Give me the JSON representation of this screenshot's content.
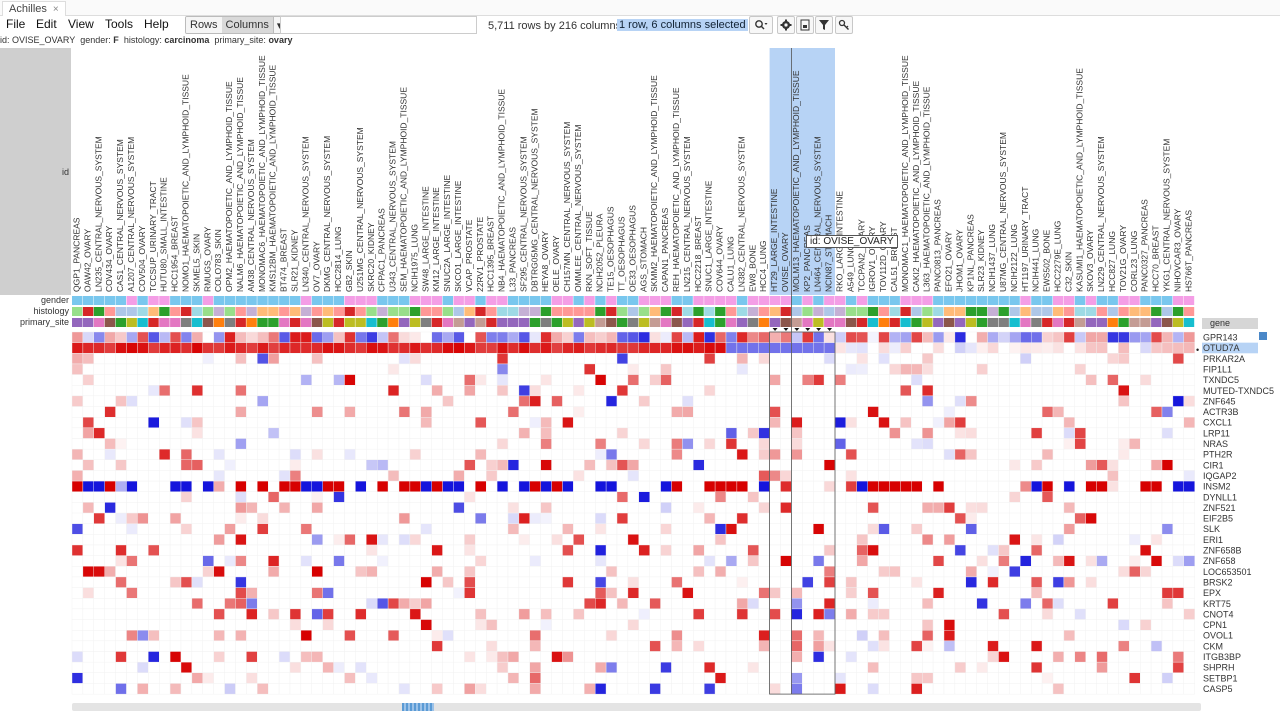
{
  "app": {
    "tab_title": "Achilles",
    "close_glyph": "×"
  },
  "menu": [
    "File",
    "Edit",
    "View",
    "Tools",
    "Help"
  ],
  "toggle": {
    "rows": "Rows",
    "columns": "Columns",
    "active": "columns",
    "caret": "▾"
  },
  "search": {
    "value": "",
    "placeholder": ""
  },
  "status": {
    "row_count": "5,711 rows by 216 columns",
    "selection": "1 row, 6 columns selected"
  },
  "toolbar_icons": [
    "zoom-icon",
    "gear-icon",
    "save-icon",
    "filter-icon",
    "key-icon"
  ],
  "info": {
    "id_label": "id:",
    "id_value": "OVISE_OVARY",
    "gender_label": "gender:",
    "gender_value": "F",
    "histology_label": "histology:",
    "histology_value": "carcinoma",
    "site_label": "primary_site:",
    "site_value": "ovary"
  },
  "row_annotations": {
    "id_label": "id",
    "gender": "gender",
    "histology": "histology",
    "primary_site": "primary_site"
  },
  "gene_header": "gene",
  "tooltip": {
    "label": "id:",
    "value": "OVISE_OVARY"
  },
  "columns": [
    "QGP1_PANCREAS",
    "OAW42_OVARY",
    "LN235_CENTRAL_NERVOUS_SYSTEM",
    "COV434_OVARY",
    "CAS1_CENTRAL_NERVOUS_SYSTEM",
    "A1207_CENTRAL_NERVOUS_SYSTEM",
    "COV504_OVARY",
    "TCCSUP_URINARY_TRACT",
    "HUTU80_SMALL_INTESTINE",
    "HCC1954_BREAST",
    "NOMO1_HAEMATOPOIETIC_AND_LYMPHOID_TISSUE",
    "SKMEL5_SKIN",
    "RMUGS_OVARY",
    "COLO783_SKIN",
    "OPM2_HAEMATOPOIETIC_AND_LYMPHOID_TISSUE",
    "NALM6_HAEMATOPOIETIC_AND_LYMPHOID_TISSUE",
    "AM38_CENTRAL_NERVOUS_SYSTEM",
    "MONOMAC6_HAEMATOPOIETIC_AND_LYMPHOID_TISSUE",
    "KMS12BM_HAEMATOPOIETIC_AND_LYMPHOID_TISSUE",
    "BT474_BREAST",
    "SLR21_KIDNEY",
    "LN340_CENTRAL_NERVOUS_SYSTEM",
    "OV7_OVARY",
    "DKMG_CENTRAL_NERVOUS_SYSTEM",
    "HCC2814_LUNG",
    "GB2_SKIN",
    "U251MG_CENTRAL_NERVOUS_SYSTEM",
    "SKRC20_KIDNEY",
    "CFPAC1_PANCREAS",
    "U343_CENTRAL_NERVOUS_SYSTEM",
    "SEM_HAEMATOPOIETIC_AND_LYMPHOID_TISSUE",
    "NCIH1975_LUNG",
    "SW48_LARGE_INTESTINE",
    "KM12_LARGE_INTESTINE",
    "SNUC2A_LARGE_INTESTINE",
    "SKCO1_LARGE_INTESTINE",
    "VCAP_PROSTATE",
    "22RV1_PROSTATE",
    "HCC1395_BREAST",
    "NB4_HAEMATOPOIETIC_AND_LYMPHOID_TISSUE",
    "L33_PANCREAS",
    "SF295_CENTRAL_NERVOUS_SYSTEM",
    "DBTRG05MG_CENTRAL_NERVOUS_SYSTEM",
    "HEYA8_OVARY",
    "OELE_OVARY",
    "CH157MN_CENTRAL_NERVOUS_SYSTEM",
    "OMMLEE_CENTRAL_NERVOUS_SYSTEM",
    "RKN_SOFT_TISSUE",
    "NCIH2052_PLEURA",
    "TE15_OESOPHAGUS",
    "TT_OESOPHAGUS",
    "OE33_OESOPHAGUS",
    "AGS_STOMACH",
    "SKMM2_HAEMATOPOIETIC_AND_LYMPHOID_TISSUE",
    "CAPAN1_PANCREAS",
    "REH_HAEMATOPOIETIC_AND_LYMPHOID_TISSUE",
    "LN215_CENTRAL_NERVOUS_SYSTEM",
    "HCC2218_BREAST",
    "SNUC1_LARGE_INTESTINE",
    "COV644_OVARY",
    "CALU1_LUNG",
    "LN382_CENTRAL_NERVOUS_SYSTEM",
    "EW8_BONE",
    "HCC4_LUNG",
    "HT29_LARGE_INTESTINE",
    "OVISE_OVARY",
    "MOLM13_HAEMATOPOIETIC_AND_LYMPHOID_TISSUE",
    "KP2_PANCREAS",
    "LN464_CENTRAL_NERVOUS_SYSTEM",
    "NCIN87_STOMACH",
    "RKO_LARGE_INTESTINE",
    "A549_LUNG",
    "TCCPAN2_OVARY",
    "IGROV1_OVARY",
    "TOV112D_OVARY",
    "CAL51_BREAST",
    "MONOMAC1_HAEMATOPOIETIC_AND_LYMPHOID_TISSUE",
    "CAKI2_HAEMATOPOIETIC_AND_LYMPHOID_TISSUE",
    "L363_HAEMATOPOIETIC_AND_LYMPHOID_TISSUE",
    "PANC0813_PANCREAS",
    "EFO21_OVARY",
    "JHOM1_OVARY",
    "KP1NL_PANCREAS",
    "SLR23_KIDNEY",
    "NCIH1437_LUNG",
    "U87MG_CENTRAL_NERVOUS_SYSTEM",
    "NCIH2122_LUNG",
    "HT1197_URINARY_TRACT",
    "NCIH441_LUNG",
    "EWS502_BONE",
    "HCC2279E_LUNG",
    "C32_SKIN",
    "KASUMI1_HAEMATOPOIETIC_AND_LYMPHOID_TISSUE",
    "SKOV3_OVARY",
    "LN229_CENTRAL_NERVOUS_SYSTEM",
    "HCC827_LUNG",
    "TOV21G_OVARY",
    "CORL23_LUNG",
    "PANC0327_PANCREAS",
    "HCC70_BREAST",
    "YKG1_CENTRAL_NERVOUS_SYSTEM",
    "NIHOVCAR3_OVARY",
    "HS766T_PANCREAS"
  ],
  "genes": [
    "GPR143",
    "OTUD7A",
    "PRKAR2A",
    "FIP1L1",
    "TXNDC5",
    "MUTED-TXNDC5",
    "ZNF645",
    "ACTR3B",
    "CXCL1",
    "LRP11",
    "NRAS",
    "PTH2R",
    "CIR1",
    "IQGAP2",
    "INSM2",
    "DYNLL1",
    "ZNF521",
    "EIF2B5",
    "SLK",
    "ERI1",
    "ZNF658B",
    "ZNF658",
    "LOC653501",
    "BRSK2",
    "EPX",
    "KRT75",
    "CNOT4",
    "CPN1",
    "OVOL1",
    "CKM",
    "ITGB3BP",
    "SHPRH",
    "SETBP1",
    "CASP5"
  ],
  "selected_gene": "OTUD7A",
  "colors": {
    "selection": "#b7d3f5",
    "high": "#d60000",
    "low": "#1a1adc",
    "mid": "#ffffff",
    "female": "#f49ee6",
    "male": "#79c7ee"
  },
  "palettes": {
    "histology": [
      "#aec7e8",
      "#ff9896",
      "#98df8a",
      "#c5b0d5",
      "#ffbb78",
      "#d62728",
      "#9edae5",
      "#2ca02c"
    ],
    "primary_site": [
      "#e377c2",
      "#8c564b",
      "#ff7f0e",
      "#2ca02c",
      "#d62728",
      "#9467bd",
      "#bcbd22",
      "#17becf",
      "#7f7f7f",
      "#c49c94"
    ]
  }
}
